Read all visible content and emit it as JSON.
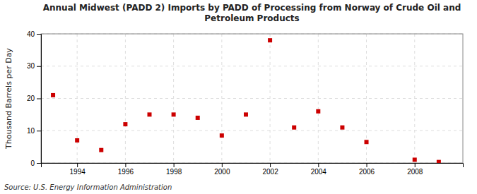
{
  "chart_data": {
    "type": "scatter",
    "title": "Annual Midwest (PADD 2) Imports by PADD of Processing from Norway of Crude Oil and\nPetroleum Products",
    "ylabel": "Thousand Barrels per Day",
    "source": "Source: U.S. Energy Information Administration",
    "x": [
      1993,
      1994,
      1995,
      1996,
      1997,
      1998,
      1999,
      2000,
      2001,
      2002,
      2003,
      2004,
      2005,
      2006,
      2008,
      2009
    ],
    "values": [
      21,
      7,
      4,
      12,
      15,
      15,
      14,
      8.5,
      15,
      38,
      11,
      16,
      11,
      6.5,
      1,
      0.3
    ],
    "color": "#cc0000",
    "marker": "square",
    "xlim": [
      1992.5,
      2010
    ],
    "ylim": [
      0,
      40
    ],
    "xticks": [
      1994,
      1996,
      1998,
      2000,
      2002,
      2004,
      2006,
      2008
    ],
    "yticks": [
      0,
      10,
      20,
      30,
      40
    ],
    "grid": true
  }
}
